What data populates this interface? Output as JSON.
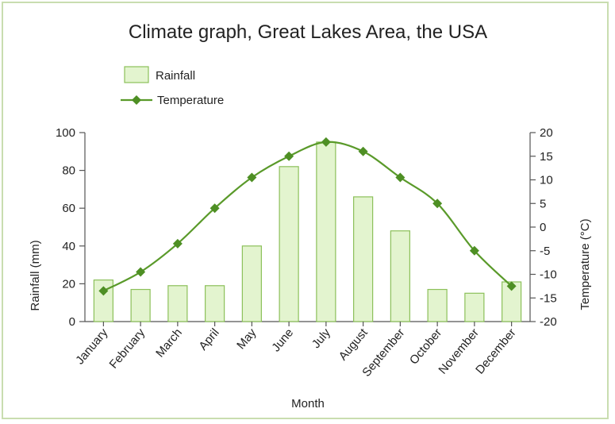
{
  "chart_data": {
    "type": "bar",
    "title": "Climate graph, Great Lakes Area, the USA",
    "xlabel": "Month",
    "ylabel_left": "Rainfall (mm)",
    "ylabel_right": "Temperature (°C)",
    "categories": [
      "January",
      "February",
      "March",
      "April",
      "May",
      "June",
      "July",
      "August",
      "September",
      "October",
      "November",
      "December"
    ],
    "ylim_left": [
      0,
      100
    ],
    "yticks_left": [
      0,
      20,
      40,
      60,
      80,
      100
    ],
    "ylim_right": [
      -20,
      20
    ],
    "yticks_right": [
      -20,
      -15,
      -10,
      -5,
      0,
      5,
      10,
      15,
      20
    ],
    "legend_position": "top-left",
    "series": [
      {
        "name": "Rainfall",
        "type": "bar",
        "axis": "left",
        "values": [
          22,
          17,
          19,
          19,
          40,
          82,
          95,
          66,
          48,
          17,
          15,
          21
        ]
      },
      {
        "name": "Temperature",
        "type": "line",
        "axis": "right",
        "values": [
          -13.5,
          -9.5,
          -3.5,
          4,
          10.5,
          15,
          18,
          16,
          10.5,
          5,
          -5,
          -12.5
        ]
      }
    ],
    "colors": {
      "bar_fill": "#e3f4cf",
      "bar_stroke": "#8cc05a",
      "line": "#5a9a2a",
      "marker": "#4e8f24"
    }
  }
}
